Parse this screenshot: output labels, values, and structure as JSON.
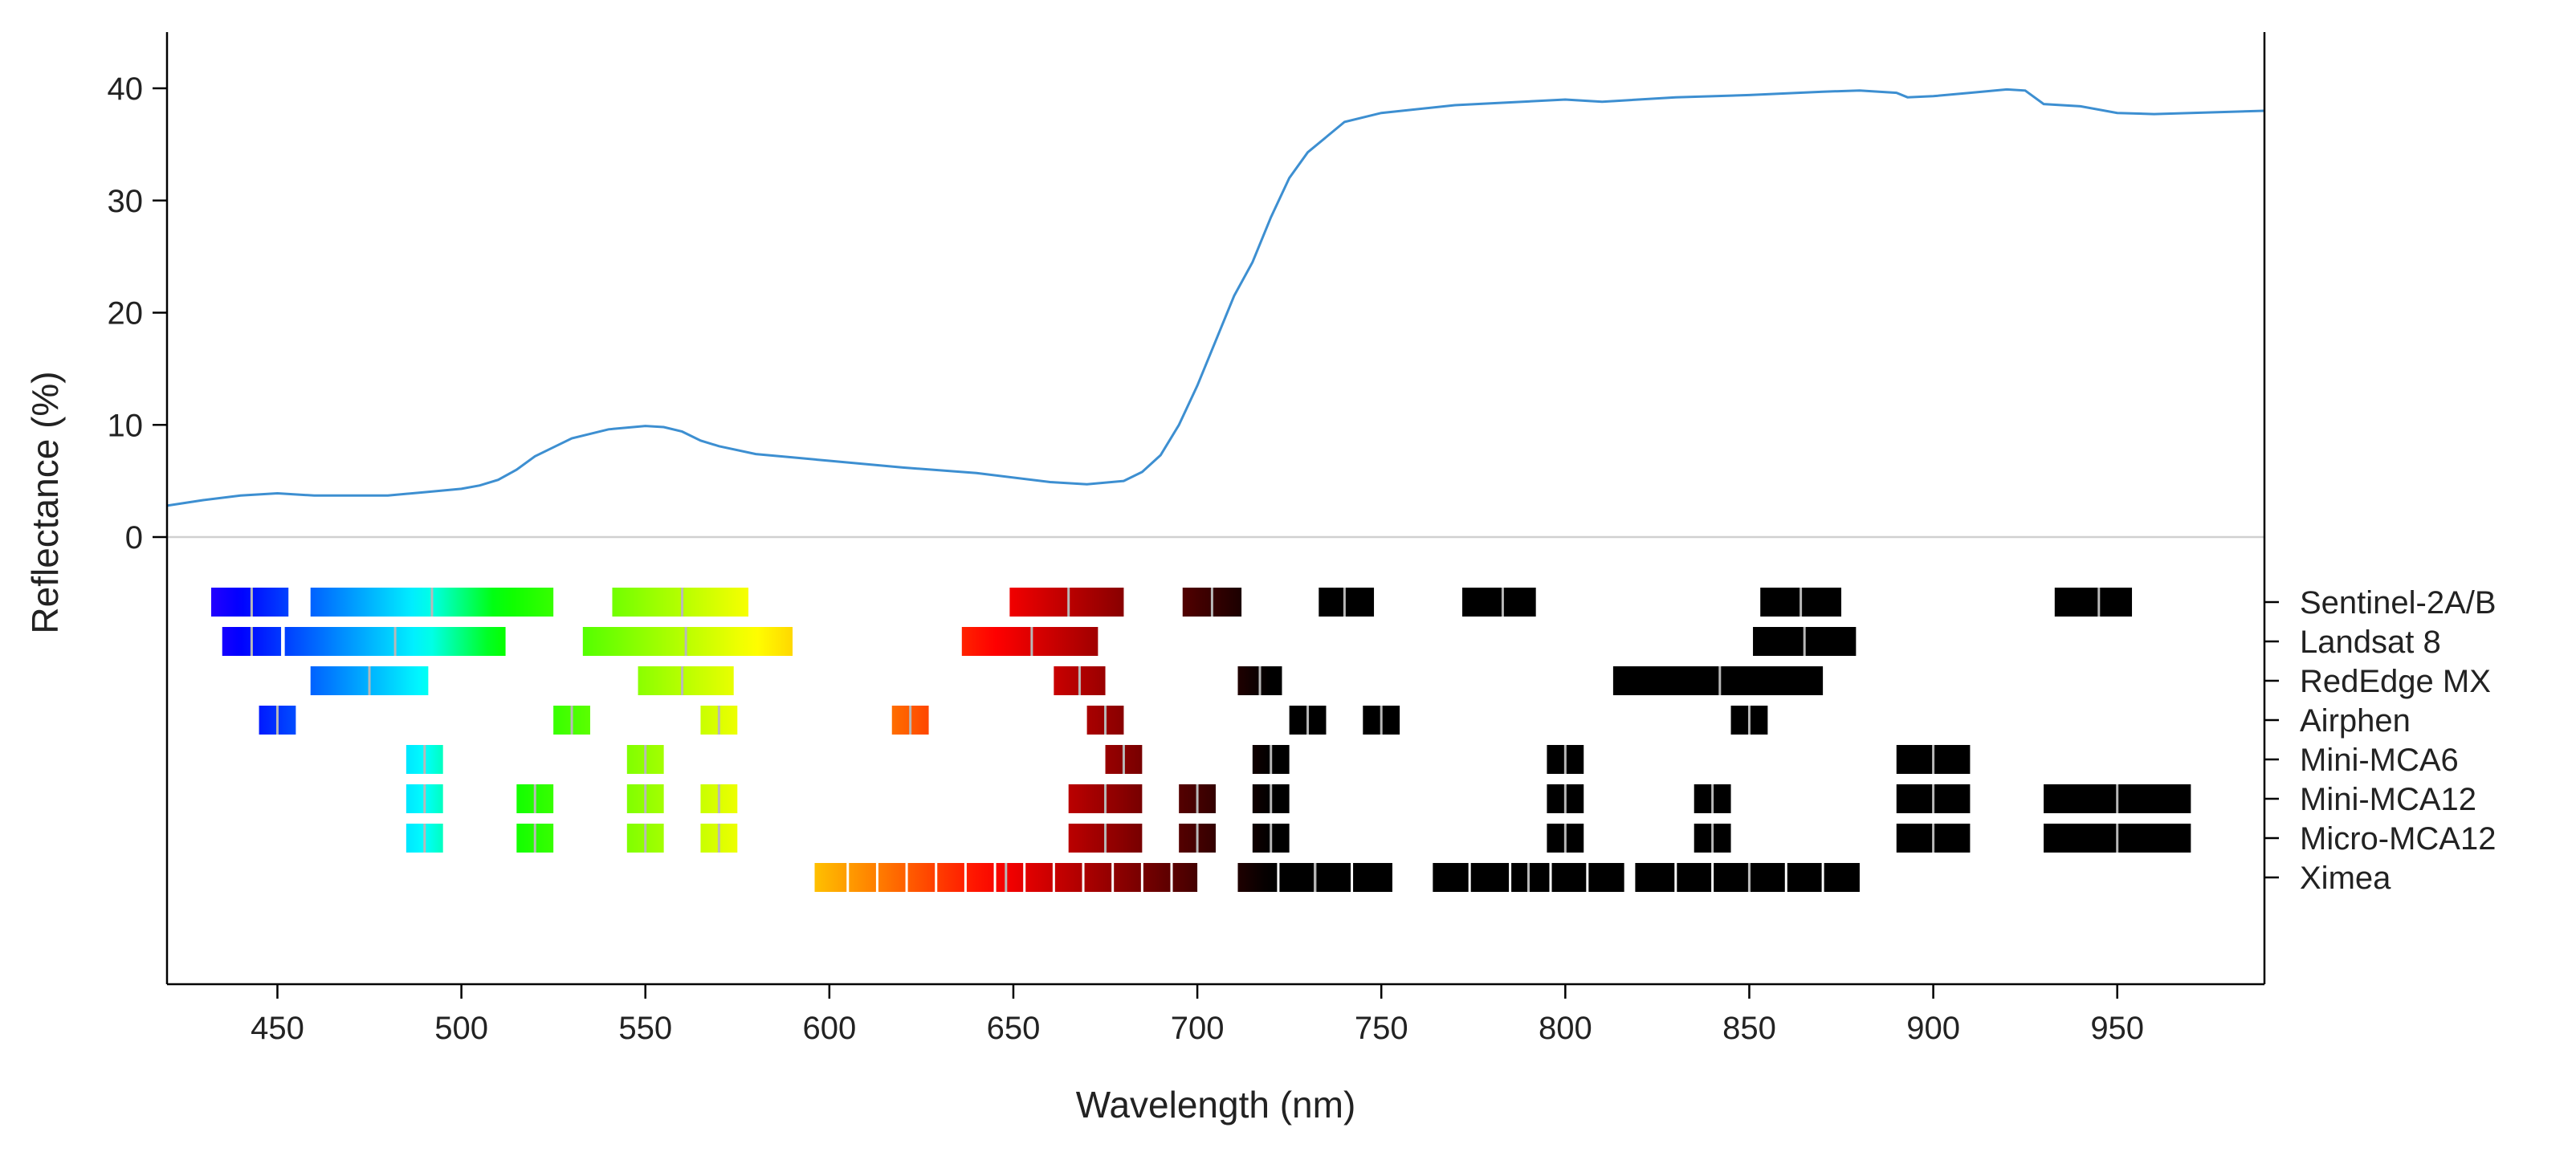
{
  "chart_data": {
    "type": "line",
    "title": "",
    "xlabel": "Wavelength (nm)",
    "ylabel": "Reflectance (%)",
    "xlim": [
      420,
      990
    ],
    "ylim": [
      -40,
      45
    ],
    "x_ticks": [
      450,
      500,
      550,
      600,
      650,
      700,
      750,
      800,
      850,
      900,
      950
    ],
    "y_ticks": [
      0,
      10,
      20,
      30,
      40
    ],
    "grid": false,
    "zero_line": true,
    "series": [
      {
        "name": "Reflectance",
        "color": "#3d8fd1",
        "x": [
          420,
          430,
          440,
          450,
          460,
          470,
          480,
          490,
          500,
          505,
          510,
          515,
          520,
          525,
          530,
          540,
          550,
          555,
          560,
          565,
          570,
          580,
          590,
          600,
          620,
          640,
          660,
          670,
          680,
          685,
          690,
          695,
          700,
          705,
          710,
          715,
          720,
          725,
          730,
          740,
          750,
          770,
          800,
          810,
          830,
          850,
          870,
          880,
          890,
          893,
          900,
          910,
          920,
          925,
          930,
          940,
          950,
          960,
          970,
          990
        ],
        "y": [
          2.8,
          3.3,
          3.7,
          3.9,
          3.7,
          3.7,
          3.7,
          4.0,
          4.3,
          4.6,
          5.1,
          6.0,
          7.2,
          8.0,
          8.8,
          9.6,
          9.9,
          9.8,
          9.4,
          8.6,
          8.1,
          7.4,
          7.1,
          6.8,
          6.2,
          5.7,
          4.9,
          4.7,
          5.0,
          5.8,
          7.3,
          10.0,
          13.5,
          17.5,
          21.5,
          24.5,
          28.5,
          32.0,
          34.3,
          37.0,
          37.8,
          38.5,
          39.0,
          38.8,
          39.2,
          39.4,
          39.7,
          39.8,
          39.6,
          39.2,
          39.3,
          39.6,
          39.9,
          39.8,
          38.6,
          38.4,
          37.8,
          37.7,
          37.8,
          38.0
        ]
      }
    ],
    "sensors": [
      {
        "name": "Sentinel-2A/B",
        "bands": [
          {
            "start": 432,
            "end": 453,
            "center": 443
          },
          {
            "start": 459,
            "end": 525,
            "center": 492
          },
          {
            "start": 541,
            "end": 578,
            "center": 560
          },
          {
            "start": 649,
            "end": 680,
            "center": 665
          },
          {
            "start": 696,
            "end": 712,
            "center": 704
          },
          {
            "start": 733,
            "end": 748,
            "center": 740
          },
          {
            "start": 772,
            "end": 792,
            "center": 783
          },
          {
            "start": 853,
            "end": 875,
            "center": 864
          },
          {
            "start": 933,
            "end": 954,
            "center": 945
          }
        ]
      },
      {
        "name": "Landsat 8",
        "bands": [
          {
            "start": 435,
            "end": 451,
            "center": 443
          },
          {
            "start": 452,
            "end": 512,
            "center": 482
          },
          {
            "start": 533,
            "end": 590,
            "center": 561
          },
          {
            "start": 636,
            "end": 673,
            "center": 655
          },
          {
            "start": 851,
            "end": 879,
            "center": 865
          }
        ]
      },
      {
        "name": "RedEdge MX",
        "bands": [
          {
            "start": 459,
            "end": 491,
            "center": 475
          },
          {
            "start": 548,
            "end": 574,
            "center": 560
          },
          {
            "start": 661,
            "end": 675,
            "center": 668
          },
          {
            "start": 711,
            "end": 723,
            "center": 717
          },
          {
            "start": 813,
            "end": 870,
            "center": 842
          }
        ]
      },
      {
        "name": "Airphen",
        "bands": [
          {
            "start": 445,
            "end": 455,
            "center": 450
          },
          {
            "start": 525,
            "end": 535,
            "center": 530
          },
          {
            "start": 565,
            "end": 575,
            "center": 570
          },
          {
            "start": 617,
            "end": 627,
            "center": 622
          },
          {
            "start": 670,
            "end": 680,
            "center": 675
          },
          {
            "start": 725,
            "end": 735,
            "center": 730
          },
          {
            "start": 745,
            "end": 755,
            "center": 750
          },
          {
            "start": 845,
            "end": 855,
            "center": 850
          }
        ]
      },
      {
        "name": "Mini-MCA6",
        "bands": [
          {
            "start": 485,
            "end": 495,
            "center": 490
          },
          {
            "start": 545,
            "end": 555,
            "center": 550
          },
          {
            "start": 675,
            "end": 685,
            "center": 680
          },
          {
            "start": 715,
            "end": 725,
            "center": 720
          },
          {
            "start": 795,
            "end": 805,
            "center": 800
          },
          {
            "start": 890,
            "end": 910,
            "center": 900
          }
        ]
      },
      {
        "name": "Mini-MCA12",
        "bands": [
          {
            "start": 485,
            "end": 495,
            "center": 490
          },
          {
            "start": 515,
            "end": 525,
            "center": 520
          },
          {
            "start": 545,
            "end": 555,
            "center": 550
          },
          {
            "start": 565,
            "end": 575,
            "center": 570
          },
          {
            "start": 665,
            "end": 685,
            "center": 675
          },
          {
            "start": 695,
            "end": 705,
            "center": 700
          },
          {
            "start": 715,
            "end": 725,
            "center": 720
          },
          {
            "start": 795,
            "end": 805,
            "center": 800
          },
          {
            "start": 835,
            "end": 845,
            "center": 840
          },
          {
            "start": 890,
            "end": 910,
            "center": 900
          },
          {
            "start": 930,
            "end": 970,
            "center": 950
          }
        ]
      },
      {
        "name": "Micro-MCA12",
        "bands": [
          {
            "start": 485,
            "end": 495,
            "center": 490
          },
          {
            "start": 515,
            "end": 525,
            "center": 520
          },
          {
            "start": 545,
            "end": 555,
            "center": 550
          },
          {
            "start": 565,
            "end": 575,
            "center": 570
          },
          {
            "start": 665,
            "end": 685,
            "center": 675
          },
          {
            "start": 695,
            "end": 705,
            "center": 700
          },
          {
            "start": 715,
            "end": 725,
            "center": 720
          },
          {
            "start": 795,
            "end": 805,
            "center": 800
          },
          {
            "start": 835,
            "end": 845,
            "center": 840
          },
          {
            "start": 890,
            "end": 910,
            "center": 900
          },
          {
            "start": 930,
            "end": 970,
            "center": 950
          }
        ]
      },
      {
        "name": "Ximea",
        "bands": [
          {
            "start": 596,
            "end": 700,
            "center": 648,
            "subdivisions": [
              605,
              613,
              621,
              629,
              637,
              645,
              653,
              661,
              669,
              677,
              685,
              693
            ]
          },
          {
            "start": 711,
            "end": 753,
            "center": 732,
            "subdivisions": [
              722,
              732,
              742
            ]
          },
          {
            "start": 764,
            "end": 816,
            "center": 790,
            "subdivisions": [
              774,
              785,
              796,
              806
            ]
          },
          {
            "start": 819,
            "end": 880,
            "center": 850,
            "subdivisions": [
              830,
              840,
              850,
              860,
              870
            ]
          }
        ]
      }
    ]
  }
}
